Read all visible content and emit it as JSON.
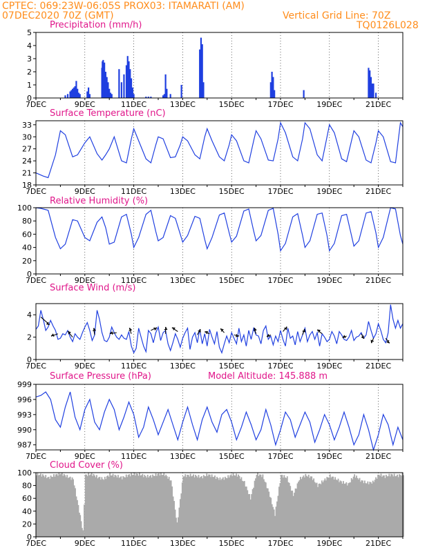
{
  "header": {
    "line1": "CPTEC:   069:23W-06:05S   PROX03: ITAMARATI (AM)",
    "line2_left": "07DEC2020 70Z (GMT)",
    "line2_right": "Vertical Grid Line: 70Z",
    "line3_right": "TQ0126L028",
    "altitude": "Model Altitude: 145.888  m"
  },
  "colors": {
    "header": "#ff8c1a",
    "title": "#e0168a",
    "line": "#1f3fe0",
    "bar": "#1f3fe0",
    "cloud": "#aaaaaa",
    "axis": "#000000"
  },
  "x_axis": {
    "start_day": 7,
    "end_day": 22,
    "ticks": [
      "7DEC",
      "9DEC",
      "11DEC",
      "13DEC",
      "15DEC",
      "17DEC",
      "19DEC",
      "21DEC"
    ],
    "tick_days": [
      7,
      9,
      11,
      13,
      15,
      17,
      19,
      21
    ]
  },
  "chart_data": [
    {
      "type": "bar",
      "title": "Precipitation (mm/h)",
      "ylim": [
        0,
        5
      ],
      "yticks": [
        0,
        1,
        2,
        3,
        4,
        5
      ],
      "x": [
        8.2,
        8.3,
        8.4,
        8.45,
        8.5,
        8.55,
        8.6,
        8.65,
        8.7,
        8.75,
        8.8,
        9.1,
        9.15,
        9.2,
        9.7,
        9.72,
        9.75,
        9.8,
        9.85,
        9.9,
        9.95,
        10.0,
        10.05,
        10.1,
        10.4,
        10.5,
        10.6,
        10.7,
        10.75,
        10.8,
        10.85,
        10.9,
        10.95,
        11.0,
        11.5,
        11.6,
        11.7,
        12.2,
        12.25,
        12.3,
        12.35,
        12.5,
        12.95,
        13.7,
        13.75,
        13.8,
        13.85,
        16.6,
        16.65,
        16.7,
        16.75,
        17.95,
        20.6,
        20.65,
        20.7,
        20.75,
        20.8,
        20.9
      ],
      "values": [
        0.2,
        0.3,
        0.5,
        0.6,
        0.7,
        0.8,
        0.9,
        1.3,
        0.7,
        0.4,
        0.3,
        0.5,
        0.8,
        0.3,
        2.3,
        2.8,
        2.9,
        2.7,
        2.0,
        1.6,
        1.2,
        0.7,
        0.4,
        0.3,
        2.2,
        1.2,
        1.8,
        2.5,
        3.2,
        2.8,
        2.2,
        1.5,
        0.8,
        0.3,
        0.1,
        0.1,
        0.1,
        0.2,
        0.3,
        1.8,
        0.7,
        0.3,
        1.0,
        3.7,
        4.6,
        4.1,
        1.2,
        1.2,
        2.0,
        1.6,
        0.6,
        0.6,
        2.3,
        2.1,
        1.6,
        1.1,
        1.1,
        0.4
      ]
    },
    {
      "type": "line",
      "title": "Surface Temperature (nC)",
      "ylim": [
        18,
        34
      ],
      "yticks": [
        18,
        21,
        24,
        27,
        30,
        33
      ],
      "x": [
        7.0,
        7.3,
        7.5,
        7.8,
        8.0,
        8.2,
        8.5,
        8.7,
        9.0,
        9.2,
        9.5,
        9.7,
        9.85,
        10.0,
        10.2,
        10.5,
        10.7,
        10.9,
        11.0,
        11.2,
        11.5,
        11.7,
        11.9,
        12.0,
        12.2,
        12.5,
        12.7,
        12.9,
        13.0,
        13.2,
        13.5,
        13.7,
        13.9,
        14.0,
        14.2,
        14.5,
        14.7,
        14.9,
        15.0,
        15.2,
        15.5,
        15.7,
        15.9,
        16.0,
        16.2,
        16.5,
        16.7,
        16.9,
        17.0,
        17.2,
        17.5,
        17.7,
        17.9,
        18.0,
        18.2,
        18.5,
        18.7,
        18.9,
        19.0,
        19.2,
        19.5,
        19.7,
        19.9,
        20.0,
        20.2,
        20.5,
        20.7,
        20.9,
        21.0,
        21.2,
        21.5,
        21.7,
        21.9,
        22.0
      ],
      "values": [
        21.0,
        20.2,
        19.8,
        25.5,
        31.5,
        30.5,
        25.0,
        25.5,
        28.5,
        30.0,
        25.8,
        24.2,
        25.5,
        27.0,
        30.0,
        24.0,
        23.5,
        29.5,
        32.0,
        29.0,
        24.5,
        23.5,
        28.0,
        30.0,
        29.5,
        24.8,
        25.0,
        28.0,
        30.0,
        29.0,
        25.5,
        24.5,
        30.0,
        32.0,
        29.0,
        25.0,
        24.0,
        28.0,
        30.5,
        29.0,
        24.0,
        23.5,
        29.0,
        31.5,
        29.5,
        24.2,
        24.0,
        29.5,
        33.5,
        31.0,
        25.0,
        24.0,
        29.5,
        33.5,
        32.0,
        25.5,
        24.0,
        30.0,
        33.0,
        31.0,
        24.5,
        23.8,
        29.0,
        31.5,
        30.0,
        24.2,
        23.5,
        28.5,
        31.5,
        30.0,
        23.8,
        23.5,
        33.5,
        32.5
      ]
    },
    {
      "type": "line",
      "title": "Relative Humidity (%)",
      "ylim": [
        0,
        100
      ],
      "yticks": [
        0,
        20,
        40,
        60,
        80,
        100
      ],
      "x": [
        7.0,
        7.2,
        7.5,
        7.8,
        8.0,
        8.2,
        8.5,
        8.7,
        9.0,
        9.2,
        9.5,
        9.7,
        9.85,
        10.0,
        10.2,
        10.5,
        10.7,
        10.9,
        11.0,
        11.2,
        11.5,
        11.7,
        11.9,
        12.0,
        12.2,
        12.5,
        12.7,
        12.9,
        13.0,
        13.2,
        13.5,
        13.7,
        13.9,
        14.0,
        14.2,
        14.5,
        14.7,
        14.9,
        15.0,
        15.2,
        15.5,
        15.7,
        15.9,
        16.0,
        16.2,
        16.5,
        16.7,
        16.9,
        17.0,
        17.2,
        17.5,
        17.7,
        17.9,
        18.0,
        18.2,
        18.5,
        18.7,
        18.9,
        19.0,
        19.2,
        19.5,
        19.7,
        19.9,
        20.0,
        20.2,
        20.5,
        20.7,
        20.9,
        21.0,
        21.2,
        21.5,
        21.7,
        21.9,
        22.0
      ],
      "values": [
        100,
        99,
        96,
        55,
        38,
        45,
        82,
        80,
        55,
        50,
        78,
        86,
        70,
        45,
        48,
        86,
        90,
        60,
        40,
        55,
        90,
        96,
        64,
        50,
        55,
        88,
        84,
        60,
        48,
        58,
        87,
        84,
        52,
        38,
        55,
        89,
        92,
        62,
        48,
        57,
        95,
        98,
        65,
        50,
        58,
        96,
        99,
        60,
        35,
        46,
        86,
        91,
        58,
        40,
        50,
        90,
        92,
        58,
        35,
        46,
        88,
        90,
        58,
        42,
        50,
        92,
        94,
        62,
        40,
        55,
        100,
        98,
        58,
        45
      ]
    },
    {
      "type": "line",
      "title": "Surface Wind (m/s)",
      "ylim": [
        0,
        5
      ],
      "yticks": [
        0,
        2,
        4
      ],
      "x": [
        7.0,
        7.1,
        7.2,
        7.3,
        7.4,
        7.5,
        7.6,
        7.7,
        7.8,
        7.9,
        8.0,
        8.1,
        8.2,
        8.3,
        8.4,
        8.5,
        8.6,
        8.7,
        8.8,
        8.9,
        9.0,
        9.1,
        9.2,
        9.3,
        9.4,
        9.5,
        9.6,
        9.7,
        9.8,
        9.9,
        10.0,
        10.1,
        10.2,
        10.3,
        10.4,
        10.5,
        10.6,
        10.7,
        10.8,
        10.9,
        11.0,
        11.1,
        11.2,
        11.3,
        11.4,
        11.5,
        11.6,
        11.7,
        11.8,
        11.9,
        12.0,
        12.1,
        12.2,
        12.3,
        12.4,
        12.5,
        12.6,
        12.7,
        12.8,
        12.9,
        13.0,
        13.1,
        13.2,
        13.3,
        13.4,
        13.5,
        13.6,
        13.7,
        13.8,
        13.9,
        14.0,
        14.1,
        14.2,
        14.3,
        14.4,
        14.5,
        14.6,
        14.7,
        14.8,
        14.9,
        15.0,
        15.1,
        15.2,
        15.3,
        15.4,
        15.5,
        15.6,
        15.7,
        15.8,
        15.9,
        16.0,
        16.1,
        16.2,
        16.3,
        16.4,
        16.5,
        16.6,
        16.7,
        16.8,
        16.9,
        17.0,
        17.1,
        17.2,
        17.3,
        17.4,
        17.5,
        17.6,
        17.7,
        17.8,
        17.9,
        18.0,
        18.1,
        18.2,
        18.3,
        18.4,
        18.5,
        18.6,
        18.7,
        18.8,
        18.9,
        19.0,
        19.1,
        19.2,
        19.3,
        19.4,
        19.5,
        19.6,
        19.7,
        19.8,
        19.9,
        20.0,
        20.1,
        20.2,
        20.3,
        20.4,
        20.5,
        20.6,
        20.7,
        20.8,
        20.9,
        21.0,
        21.1,
        21.2,
        21.3,
        21.4,
        21.5,
        21.6,
        21.7,
        21.8,
        21.9,
        22.0
      ],
      "values": [
        2.7,
        3.0,
        4.4,
        3.6,
        2.6,
        2.9,
        3.5,
        3.0,
        2.6,
        1.8,
        1.9,
        2.3,
        2.2,
        2.6,
        2.0,
        1.6,
        2.3,
        2.0,
        1.8,
        2.4,
        2.9,
        3.3,
        2.6,
        1.7,
        2.2,
        4.4,
        3.6,
        2.4,
        1.7,
        1.6,
        2.0,
        2.9,
        2.4,
        2.0,
        1.8,
        2.2,
        1.9,
        1.8,
        2.5,
        1.2,
        0.6,
        1.0,
        2.8,
        2.0,
        1.2,
        0.7,
        2.6,
        2.3,
        1.5,
        2.4,
        2.9,
        1.7,
        2.4,
        2.6,
        1.4,
        0.8,
        1.5,
        2.3,
        1.8,
        1.1,
        1.9,
        2.4,
        2.8,
        0.9,
        2.0,
        2.4,
        1.5,
        2.7,
        1.4,
        2.3,
        1.2,
        2.7,
        2.0,
        1.4,
        2.5,
        1.1,
        0.6,
        1.4,
        2.1,
        1.5,
        2.4,
        1.9,
        1.4,
        2.8,
        1.6,
        2.2,
        1.2,
        2.6,
        1.8,
        2.8,
        2.2,
        2.1,
        1.4,
        2.6,
        3.0,
        1.8,
        2.1,
        1.3,
        2.1,
        1.6,
        2.6,
        1.8,
        1.2,
        2.8,
        1.9,
        2.1,
        1.3,
        2.5,
        1.6,
        2.2,
        2.8,
        1.6,
        2.2,
        2.5,
        1.8,
        2.4,
        1.2,
        2.3,
        2.0,
        1.6,
        1.8,
        2.5,
        2.1,
        1.4,
        2.5,
        2.2,
        1.8,
        1.7,
        2.0,
        2.6,
        1.7,
        2.0,
        2.1,
        2.4,
        1.9,
        2.2,
        3.4,
        2.6,
        1.9,
        2.3,
        3.2,
        2.6,
        1.8,
        1.5,
        2.4,
        4.9,
        3.6,
        2.8,
        3.5,
        2.8,
        3.2
      ],
      "arrows": [
        {
          "x": 7.2,
          "y": 3.8,
          "dx": 18,
          "dy": 16
        },
        {
          "x": 7.9,
          "y": 2.3,
          "dx": -14,
          "dy": 5
        },
        {
          "x": 8.5,
          "y": 2.0,
          "dx": -10,
          "dy": -12
        },
        {
          "x": 9.4,
          "y": 2.2,
          "dx": -2,
          "dy": -14
        },
        {
          "x": 10.3,
          "y": 2.4,
          "dx": -14,
          "dy": 2
        },
        {
          "x": 10.9,
          "y": 2.3,
          "dx": -4,
          "dy": -12
        },
        {
          "x": 11.7,
          "y": 2.6,
          "dx": 12,
          "dy": -6
        },
        {
          "x": 12.3,
          "y": 2.3,
          "dx": 0,
          "dy": -14
        },
        {
          "x": 12.8,
          "y": 2.5,
          "dx": -12,
          "dy": -8
        },
        {
          "x": 13.6,
          "y": 2.2,
          "dx": 6,
          "dy": -12
        },
        {
          "x": 14.1,
          "y": 2.3,
          "dx": -10,
          "dy": -4
        },
        {
          "x": 14.7,
          "y": 2.4,
          "dx": -8,
          "dy": -8
        },
        {
          "x": 15.1,
          "y": 2.2,
          "dx": 10,
          "dy": 2
        },
        {
          "x": 16.0,
          "y": 2.3,
          "dx": -4,
          "dy": -12
        },
        {
          "x": 16.6,
          "y": 2.2,
          "dx": -8,
          "dy": 4
        },
        {
          "x": 17.1,
          "y": 2.5,
          "dx": 8,
          "dy": -10
        },
        {
          "x": 17.9,
          "y": 2.2,
          "dx": 4,
          "dy": -12
        },
        {
          "x": 18.7,
          "y": 2.3,
          "dx": -10,
          "dy": -8
        },
        {
          "x": 19.7,
          "y": 2.1,
          "dx": -8,
          "dy": 4
        },
        {
          "x": 20.3,
          "y": 2.3,
          "dx": 6,
          "dy": 10
        },
        {
          "x": 20.8,
          "y": 1.9,
          "dx": -4,
          "dy": 10
        },
        {
          "x": 21.3,
          "y": 1.9,
          "dx": 8,
          "dy": 10
        }
      ]
    },
    {
      "type": "line",
      "title": "Surface Pressure (hPa)",
      "ylim": [
        986,
        999
      ],
      "yticks": [
        987,
        990,
        993,
        996,
        999
      ],
      "x": [
        7.0,
        7.2,
        7.4,
        7.6,
        7.8,
        8.0,
        8.2,
        8.4,
        8.6,
        8.8,
        9.0,
        9.2,
        9.4,
        9.6,
        9.8,
        10.0,
        10.2,
        10.4,
        10.6,
        10.8,
        11.0,
        11.2,
        11.4,
        11.6,
        11.8,
        12.0,
        12.2,
        12.4,
        12.6,
        12.8,
        13.0,
        13.2,
        13.4,
        13.6,
        13.8,
        14.0,
        14.2,
        14.4,
        14.6,
        14.8,
        15.0,
        15.2,
        15.4,
        15.6,
        15.8,
        16.0,
        16.2,
        16.4,
        16.6,
        16.8,
        17.0,
        17.2,
        17.4,
        17.6,
        17.8,
        18.0,
        18.2,
        18.4,
        18.6,
        18.8,
        19.0,
        19.2,
        19.4,
        19.6,
        19.8,
        20.0,
        20.2,
        20.4,
        20.6,
        20.8,
        21.0,
        21.2,
        21.4,
        21.6,
        21.8,
        22.0
      ],
      "values": [
        996.5,
        996.8,
        997.5,
        996.0,
        992.0,
        990.5,
        994.5,
        997.5,
        992.5,
        990.0,
        994.0,
        996.0,
        991.5,
        990.0,
        993.5,
        996.0,
        994.0,
        990.0,
        992.5,
        995.5,
        993.0,
        988.5,
        990.5,
        994.5,
        992.0,
        989.0,
        991.5,
        994.0,
        991.0,
        988.0,
        991.5,
        994.5,
        991.0,
        988.0,
        992.0,
        994.5,
        991.5,
        989.5,
        993.0,
        994.0,
        991.5,
        988.0,
        990.5,
        993.5,
        991.0,
        988.0,
        990.0,
        994.0,
        991.0,
        987.0,
        990.0,
        993.5,
        992.0,
        988.5,
        991.0,
        993.5,
        991.5,
        987.5,
        990.0,
        993.0,
        991.0,
        988.0,
        990.5,
        993.5,
        990.5,
        987.0,
        989.0,
        993.0,
        990.0,
        986.0,
        989.0,
        993.0,
        991.0,
        987.0,
        990.5,
        988.0
      ]
    },
    {
      "type": "area",
      "title": "Cloud Cover (%)",
      "ylim": [
        0,
        100
      ],
      "yticks": [
        0,
        20,
        40,
        60,
        80,
        100
      ],
      "x": [
        7.0,
        7.25,
        7.5,
        7.75,
        8.0,
        8.25,
        8.5,
        8.75,
        8.9,
        9.0,
        9.25,
        9.5,
        9.75,
        10.0,
        10.25,
        10.5,
        10.75,
        11.0,
        11.25,
        11.5,
        11.75,
        12.0,
        12.25,
        12.5,
        12.75,
        13.0,
        13.25,
        13.5,
        13.75,
        14.0,
        14.25,
        14.5,
        14.75,
        15.0,
        15.25,
        15.5,
        15.75,
        16.0,
        16.25,
        16.5,
        16.75,
        17.0,
        17.25,
        17.5,
        17.75,
        18.0,
        18.25,
        18.5,
        18.75,
        19.0,
        19.25,
        19.5,
        19.75,
        20.0,
        20.25,
        20.5,
        20.75,
        21.0,
        21.25,
        21.5,
        21.75,
        22.0
      ],
      "values": [
        98,
        96,
        92,
        96,
        99,
        94,
        90,
        40,
        8,
        96,
        98,
        93,
        90,
        97,
        95,
        92,
        96,
        98,
        97,
        94,
        95,
        98,
        97,
        88,
        20,
        95,
        96,
        95,
        93,
        97,
        94,
        90,
        92,
        97,
        96,
        85,
        60,
        98,
        95,
        70,
        35,
        96,
        92,
        65,
        90,
        96,
        93,
        80,
        88,
        95,
        90,
        85,
        82,
        96,
        88,
        84,
        85,
        97,
        94,
        97,
        95,
        98
      ]
    }
  ]
}
